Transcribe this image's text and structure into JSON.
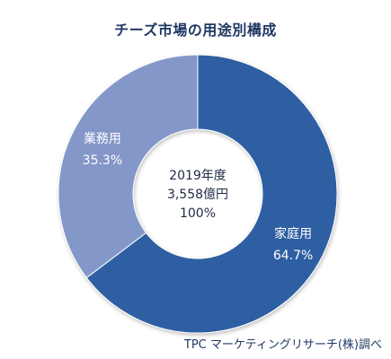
{
  "chart_data": {
    "type": "pie",
    "title": "チーズ市場の用途別構成",
    "center_label": [
      "2019年度",
      "3,558億円",
      "100%"
    ],
    "slices": [
      {
        "label": "家庭用",
        "value": 64.7,
        "value_label": "64.7%",
        "color": "#2f5fa3"
      },
      {
        "label": "業務用",
        "value": 35.3,
        "value_label": "35.3%",
        "color": "#8497c9"
      }
    ],
    "source": "TPC マーケティングリサーチ(株)調べ"
  }
}
